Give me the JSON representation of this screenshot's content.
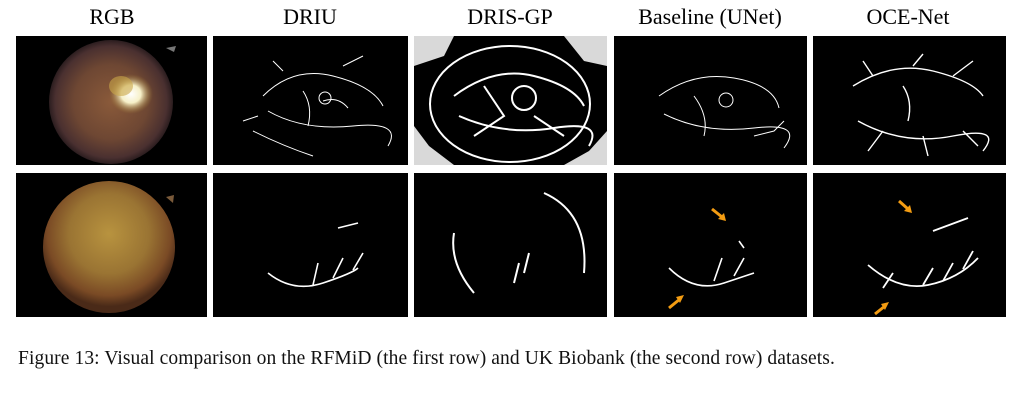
{
  "figure": {
    "columns": [
      "RGB",
      "DRIU",
      "DRIS-GP",
      "Baseline (UNet)",
      "OCE-Net"
    ],
    "rows": [
      "RFMiD",
      "UK Biobank"
    ],
    "highlight_color": "#f39c12",
    "caption": "Figure 13: Visual comparison on the RFMiD (the first row) and UK Biobank (the second row) datasets."
  }
}
